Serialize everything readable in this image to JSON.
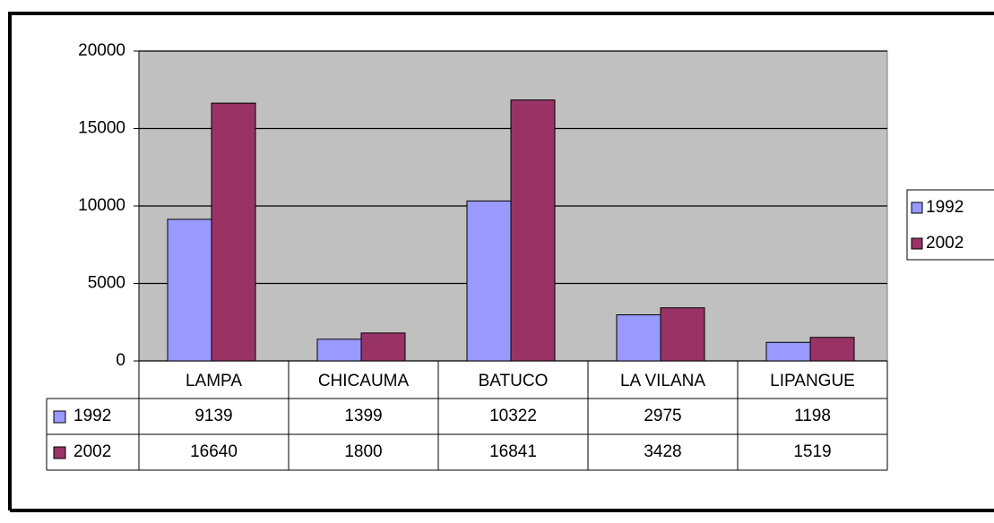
{
  "chart_data": {
    "type": "bar",
    "categories": [
      "LAMPA",
      "CHICAUMA",
      "BATUCO",
      "LA VILANA",
      "LIPANGUE"
    ],
    "series": [
      {
        "name": "1992",
        "color": "#9999ff",
        "values": [
          9139,
          1399,
          10322,
          2975,
          1198
        ]
      },
      {
        "name": "2002",
        "color": "#993366",
        "values": [
          16640,
          1800,
          16841,
          3428,
          1519
        ]
      }
    ],
    "ylim": [
      0,
      20000
    ],
    "yticks": [
      0,
      5000,
      10000,
      15000,
      20000
    ],
    "grid": true,
    "legend": "right",
    "data_table": true
  }
}
